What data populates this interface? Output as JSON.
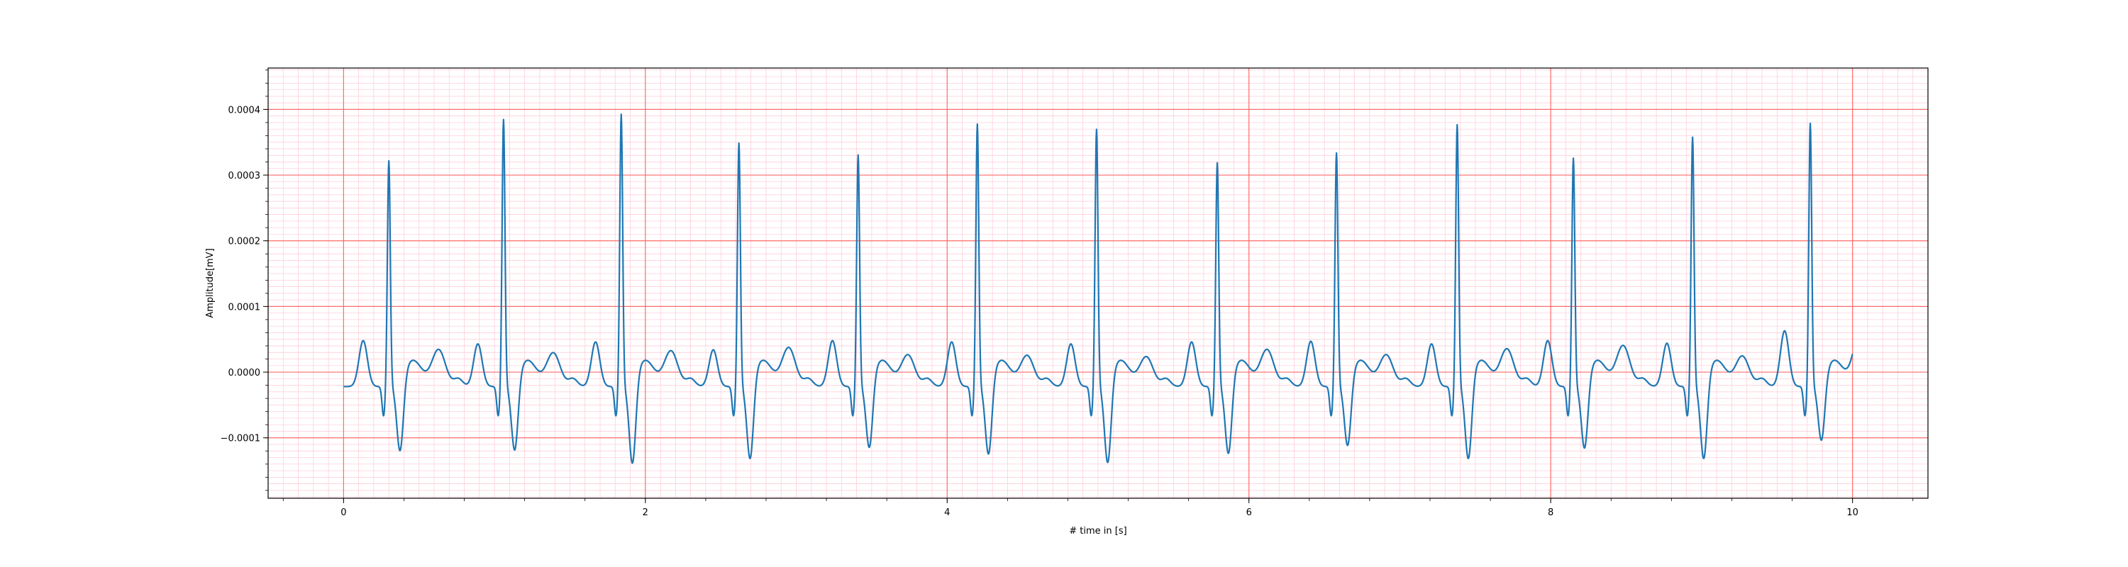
{
  "chart_data": {
    "type": "line",
    "xlabel": "# time in [s]",
    "ylabel": "Amplitude[mV]",
    "xlim": [
      -0.5,
      10.5
    ],
    "ylim": [
      -0.000192,
      0.000463
    ],
    "x_ticks": [
      0,
      2,
      4,
      6,
      8,
      10
    ],
    "x_tick_labels": [
      "0",
      "2",
      "4",
      "6",
      "8",
      "10"
    ],
    "y_ticks": [
      -0.0001,
      0.0,
      0.0001,
      0.0002,
      0.0003,
      0.0004
    ],
    "y_tick_labels": [
      "−0.0001",
      "0.0000",
      "0.0001",
      "0.0002",
      "0.0003",
      "0.0004"
    ],
    "grid": {
      "major_color": "#ff6b6b",
      "minor_color": "#ffc8d4",
      "major_x_step": 2,
      "major_y_step": 0.0001,
      "minor_x_step": 0.1,
      "minor_y_step": 1e-05
    },
    "series_color": "#1f77b4",
    "beat_times": [
      0.3,
      1.06,
      1.84,
      2.62,
      3.41,
      4.2,
      4.99,
      5.79,
      6.58,
      7.38,
      8.15,
      8.94,
      9.72
    ],
    "r_peaks": [
      0.000365,
      0.000428,
      0.000436,
      0.000392,
      0.000374,
      0.000421,
      0.000413,
      0.000362,
      0.000377,
      0.00042,
      0.000369,
      0.000401,
      0.000422
    ],
    "s_troughs": [
      -0.000142,
      -0.000141,
      -0.000161,
      -0.000154,
      -0.000137,
      -0.000147,
      -0.00016,
      -0.000146,
      -0.000134,
      -0.000154,
      -0.000138,
      -0.000154,
      -0.000126
    ],
    "t_peaks": [
      3.6e-05,
      3.1e-05,
      3.4e-05,
      3.9e-05,
      2.8e-05,
      2.7e-05,
      2.5e-05,
      3.6e-05,
      2.8e-05,
      3.7e-05,
      4.2e-05,
      2.6e-05,
      6.2e-05
    ],
    "p_peaks": [
      5e-05,
      4.5e-05,
      4.8e-05,
      3.6e-05,
      5e-05,
      4.8e-05,
      4.5e-05,
      4.8e-05,
      4.9e-05,
      4.5e-05,
      5e-05,
      4.6e-05,
      6.5e-05
    ],
    "x": [
      0,
      0.1,
      0.15,
      0.2,
      0.27,
      0.3,
      0.325,
      0.38,
      0.5,
      0.6,
      0.9,
      1.06,
      1.09,
      1.16,
      1.3,
      1.4,
      1.5,
      1.84,
      1.87,
      1.94,
      2.1,
      2.62,
      2.65,
      2.72,
      2.9,
      3.41,
      3.44,
      3.51,
      3.7,
      4.2,
      4.23,
      4.3,
      4.5,
      4.99,
      5.02,
      5.09,
      5.3,
      5.79,
      5.82,
      5.89,
      6.1,
      6.58,
      6.61,
      6.68,
      6.9,
      7.38,
      7.41,
      7.48,
      7.7,
      8.15,
      8.18,
      8.25,
      8.45,
      8.94,
      8.97,
      9.04,
      9.2,
      9.55,
      9.72,
      9.75,
      9.82,
      9.95,
      10
    ],
    "y": [
      5e-06,
      1.1e-05,
      5e-05,
      -2.3e-05,
      -2.6e-05,
      0.000365,
      -4.2e-05,
      -0.000142,
      -4e-05,
      3.6e-05,
      4.5e-05,
      0.000428,
      -0.000141,
      -4.8e-05,
      3.1e-05,
      7e-06,
      4.8e-05,
      0.000436,
      -0.000161,
      -5e-05,
      3.4e-05,
      0.000392,
      -0.000154,
      -5.4e-05,
      3.9e-05,
      0.000374,
      -0.000137,
      -4.6e-05,
      2.8e-05,
      0.000421,
      -0.000147,
      -5.1e-05,
      2.7e-05,
      0.000413,
      -0.00016,
      -5.3e-05,
      2.5e-05,
      0.000362,
      -0.000146,
      -4.7e-05,
      3.6e-05,
      0.000377,
      -0.000134,
      -4.4e-05,
      2.8e-05,
      0.00042,
      -0.000154,
      -5e-05,
      3.7e-05,
      0.000369,
      -0.000138,
      -4.5e-05,
      4.2e-05,
      0.000401,
      -0.000154,
      -4.8e-05,
      2.6e-05,
      6.5e-05,
      0.000422,
      -0.000126,
      -3.5e-05,
      -6e-05,
      -2.2e-05
    ]
  }
}
